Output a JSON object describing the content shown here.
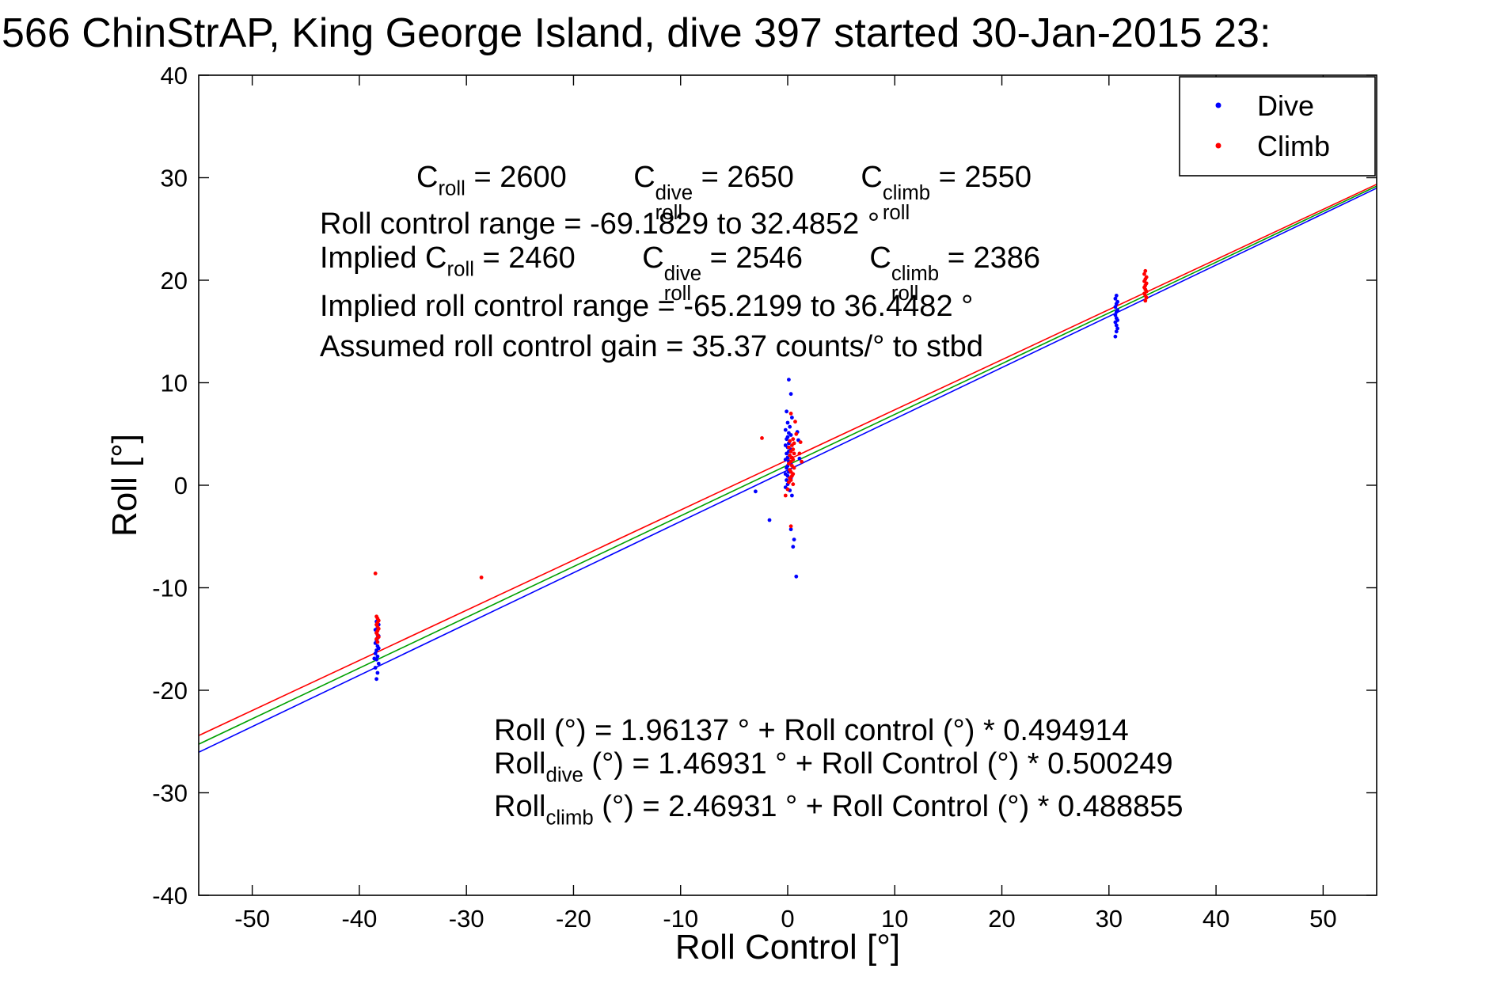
{
  "title": "566 ChinStrAP, King George Island, dive 397 started 30-Jan-2015 23:",
  "colors": {
    "dive": "#0000FF",
    "climb": "#FF0000",
    "combined_fit": "#00A000",
    "axes": "#000000",
    "background": "#FFFFFF"
  },
  "chart_data": {
    "type": "scatter",
    "title": "566 ChinStrAP, King George Island, dive 397 started 30-Jan-2015 23:",
    "xlabel": "Roll Control [°]",
    "ylabel": "Roll [°]",
    "xlim": [
      -55,
      55
    ],
    "ylim": [
      -40,
      40
    ],
    "xticks": [
      -50,
      -40,
      -30,
      -20,
      -10,
      0,
      10,
      20,
      30,
      40,
      50
    ],
    "yticks": [
      -40,
      -30,
      -20,
      -10,
      0,
      10,
      20,
      30,
      40
    ],
    "grid": false,
    "legend": {
      "position": "top-right",
      "entries": [
        {
          "label": "Dive",
          "color": "#0000FF"
        },
        {
          "label": "Climb",
          "color": "#FF0000"
        }
      ]
    },
    "series": [
      {
        "name": "Dive",
        "color": "#0000FF",
        "marker": "dot",
        "points": [
          [
            -38.4,
            -18.9
          ],
          [
            -38.3,
            -18.3
          ],
          [
            -38.5,
            -17.8
          ],
          [
            -38.2,
            -17.4
          ],
          [
            -38.4,
            -17.0
          ],
          [
            -38.3,
            -16.7
          ],
          [
            -38.5,
            -16.4
          ],
          [
            -38.4,
            -16.1
          ],
          [
            -38.2,
            -15.9
          ],
          [
            -38.3,
            -15.7
          ],
          [
            -38.5,
            -15.4
          ],
          [
            -38.4,
            -15.1
          ],
          [
            -38.3,
            -14.9
          ],
          [
            -38.2,
            -14.7
          ],
          [
            -38.4,
            -14.4
          ],
          [
            -38.5,
            -14.1
          ],
          [
            -38.3,
            -13.9
          ],
          [
            -38.2,
            -13.6
          ],
          [
            -38.4,
            -13.3
          ],
          [
            -38.6,
            -16.9
          ],
          [
            0.1,
            10.3
          ],
          [
            0.3,
            8.9
          ],
          [
            -0.1,
            7.2
          ],
          [
            0.4,
            6.6
          ],
          [
            0.0,
            6.1
          ],
          [
            0.2,
            5.7
          ],
          [
            -0.2,
            5.4
          ],
          [
            0.1,
            5.1
          ],
          [
            0.3,
            4.9
          ],
          [
            0.0,
            4.7
          ],
          [
            -0.1,
            4.5
          ],
          [
            0.2,
            4.3
          ],
          [
            0.1,
            4.1
          ],
          [
            -0.2,
            3.9
          ],
          [
            0.0,
            3.7
          ],
          [
            0.3,
            3.5
          ],
          [
            0.1,
            3.3
          ],
          [
            -0.1,
            3.1
          ],
          [
            0.2,
            2.9
          ],
          [
            0.0,
            2.7
          ],
          [
            -0.2,
            2.5
          ],
          [
            0.1,
            2.3
          ],
          [
            0.3,
            2.1
          ],
          [
            0.0,
            1.9
          ],
          [
            -0.1,
            1.7
          ],
          [
            0.2,
            1.5
          ],
          [
            0.1,
            1.3
          ],
          [
            -0.2,
            1.1
          ],
          [
            0.0,
            0.9
          ],
          [
            0.3,
            0.7
          ],
          [
            -0.1,
            0.5
          ],
          [
            0.1,
            0.3
          ],
          [
            0.0,
            0.1
          ],
          [
            -0.2,
            -0.2
          ],
          [
            0.2,
            -0.5
          ],
          [
            0.4,
            -1.0
          ],
          [
            -3.0,
            -0.6
          ],
          [
            -1.7,
            -3.4
          ],
          [
            0.3,
            -4.3
          ],
          [
            0.6,
            -5.3
          ],
          [
            0.5,
            -6.0
          ],
          [
            0.8,
            -8.9
          ],
          [
            0.9,
            5.2
          ],
          [
            1.0,
            4.4
          ],
          [
            1.1,
            2.6
          ],
          [
            30.7,
            18.5
          ],
          [
            30.6,
            18.2
          ],
          [
            30.8,
            17.9
          ],
          [
            30.7,
            17.7
          ],
          [
            30.6,
            17.4
          ],
          [
            30.8,
            17.1
          ],
          [
            30.7,
            16.9
          ],
          [
            30.6,
            16.6
          ],
          [
            30.7,
            16.3
          ],
          [
            30.8,
            16.1
          ],
          [
            30.6,
            15.9
          ],
          [
            30.7,
            15.6
          ],
          [
            30.8,
            15.3
          ],
          [
            30.7,
            15.0
          ],
          [
            30.6,
            14.5
          ]
        ]
      },
      {
        "name": "Climb",
        "color": "#FF0000",
        "marker": "dot",
        "points": [
          [
            -38.3,
            -15.3
          ],
          [
            -38.4,
            -15.0
          ],
          [
            -38.2,
            -14.8
          ],
          [
            -38.3,
            -14.6
          ],
          [
            -38.4,
            -14.4
          ],
          [
            -38.3,
            -14.2
          ],
          [
            -38.2,
            -14.0
          ],
          [
            -38.3,
            -13.8
          ],
          [
            -38.4,
            -13.6
          ],
          [
            -38.3,
            -13.4
          ],
          [
            -38.2,
            -13.2
          ],
          [
            -38.3,
            -13.0
          ],
          [
            -38.4,
            -12.8
          ],
          [
            -38.5,
            -8.6
          ],
          [
            -28.6,
            -9.0
          ],
          [
            0.3,
            7.0
          ],
          [
            -2.4,
            4.6
          ],
          [
            0.5,
            4.5
          ],
          [
            0.2,
            4.3
          ],
          [
            0.6,
            4.1
          ],
          [
            0.4,
            3.9
          ],
          [
            0.1,
            3.7
          ],
          [
            0.5,
            3.5
          ],
          [
            0.3,
            3.3
          ],
          [
            0.6,
            3.1
          ],
          [
            0.2,
            2.9
          ],
          [
            0.4,
            2.7
          ],
          [
            0.5,
            2.5
          ],
          [
            0.3,
            2.3
          ],
          [
            0.1,
            2.1
          ],
          [
            0.4,
            1.9
          ],
          [
            0.6,
            1.7
          ],
          [
            0.2,
            1.5
          ],
          [
            0.3,
            1.3
          ],
          [
            0.5,
            1.1
          ],
          [
            0.4,
            0.9
          ],
          [
            0.2,
            0.7
          ],
          [
            0.3,
            0.5
          ],
          [
            0.1,
            0.3
          ],
          [
            0.5,
            0.1
          ],
          [
            0.0,
            -0.4
          ],
          [
            -0.2,
            -1.0
          ],
          [
            0.3,
            -4.0
          ],
          [
            1.2,
            4.2
          ],
          [
            1.1,
            3.1
          ],
          [
            1.3,
            2.3
          ],
          [
            0.8,
            5.0
          ],
          [
            0.7,
            6.2
          ],
          [
            33.4,
            20.9
          ],
          [
            33.3,
            20.6
          ],
          [
            33.5,
            20.3
          ],
          [
            33.4,
            20.1
          ],
          [
            33.3,
            19.9
          ],
          [
            33.5,
            19.7
          ],
          [
            33.4,
            19.5
          ],
          [
            33.3,
            19.3
          ],
          [
            33.4,
            19.1
          ],
          [
            33.5,
            18.9
          ],
          [
            33.3,
            18.7
          ],
          [
            33.4,
            18.5
          ],
          [
            33.5,
            18.3
          ],
          [
            33.4,
            18.0
          ]
        ]
      }
    ],
    "fit_lines": [
      {
        "name": "all",
        "color": "#00A000",
        "intercept": 1.96137,
        "slope": 0.494914
      },
      {
        "name": "dive",
        "color": "#0000FF",
        "intercept": 1.46931,
        "slope": 0.500249
      },
      {
        "name": "climb",
        "color": "#FF0000",
        "intercept": 2.46931,
        "slope": 0.488855
      }
    ],
    "annotations": [
      {
        "id": "calibration",
        "segments": [
          {
            "t": "C"
          },
          {
            "sub": "roll"
          },
          {
            "t": " = 2600        "
          },
          {
            "t": "C"
          },
          {
            "sup": "dive",
            "sub": "roll"
          },
          {
            "t": " = 2650        "
          },
          {
            "t": "C"
          },
          {
            "sup": "climb",
            "sub": "roll"
          },
          {
            "t": " = 2550"
          }
        ]
      },
      {
        "id": "roll_control_range",
        "segments": [
          {
            "t": "Roll control range = -69.1829 to 32.4852 °"
          }
        ]
      },
      {
        "id": "implied_calibration",
        "segments": [
          {
            "t": "Implied C"
          },
          {
            "sub": "roll"
          },
          {
            "t": " = 2460        "
          },
          {
            "t": "C"
          },
          {
            "sup": "dive",
            "sub": "roll"
          },
          {
            "t": " = 2546        "
          },
          {
            "t": "C"
          },
          {
            "sup": "climb",
            "sub": "roll"
          },
          {
            "t": " = 2386"
          }
        ]
      },
      {
        "id": "implied_roll_control_range",
        "segments": [
          {
            "t": "Implied roll control range = -65.2199 to 36.4482 °"
          }
        ]
      },
      {
        "id": "roll_gain",
        "segments": [
          {
            "t": "Assumed roll control gain = 35.37 counts/° to stbd"
          }
        ]
      },
      {
        "id": "fit_all",
        "segments": [
          {
            "t": "Roll (°) = 1.96137 ° + Roll control (°) * 0.494914"
          }
        ]
      },
      {
        "id": "fit_dive",
        "segments": [
          {
            "t": "Roll"
          },
          {
            "sub": "dive"
          },
          {
            "t": " (°) = 1.46931 ° + Roll Control (°) * 0.500249"
          }
        ]
      },
      {
        "id": "fit_climb",
        "segments": [
          {
            "t": "Roll"
          },
          {
            "sub": "climb"
          },
          {
            "t": " (°) = 2.46931 ° + Roll Control (°) * 0.488855"
          }
        ]
      }
    ]
  }
}
